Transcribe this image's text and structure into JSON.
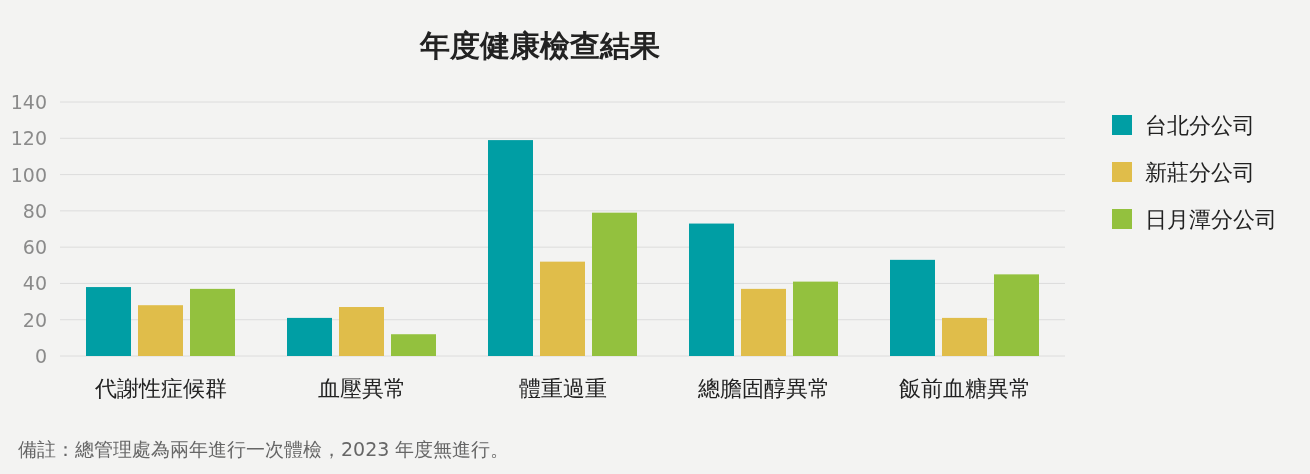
{
  "chart_data": {
    "type": "bar",
    "title": "年度健康檢查結果",
    "categories": [
      "代謝性症候群",
      "血壓異常",
      "體重過重",
      "總膽固醇異常",
      "飯前血糖異常"
    ],
    "series": [
      {
        "name": "台北分公司",
        "color": "#009ea4",
        "values": [
          38,
          21,
          119,
          73,
          53
        ]
      },
      {
        "name": "新莊分公司",
        "color": "#e0bd4a",
        "values": [
          28,
          27,
          52,
          37,
          21
        ]
      },
      {
        "name": "日月潭分公司",
        "color": "#93c13e",
        "values": [
          37,
          12,
          79,
          41,
          45
        ]
      }
    ],
    "ylim": [
      0,
      140
    ],
    "yticks": [
      0,
      20,
      40,
      60,
      80,
      100,
      120,
      140
    ],
    "grid": "y",
    "legend": "right",
    "annotations": [
      "備註：總管理處為兩年進行一次體檢，2023 年度無進行。"
    ]
  }
}
